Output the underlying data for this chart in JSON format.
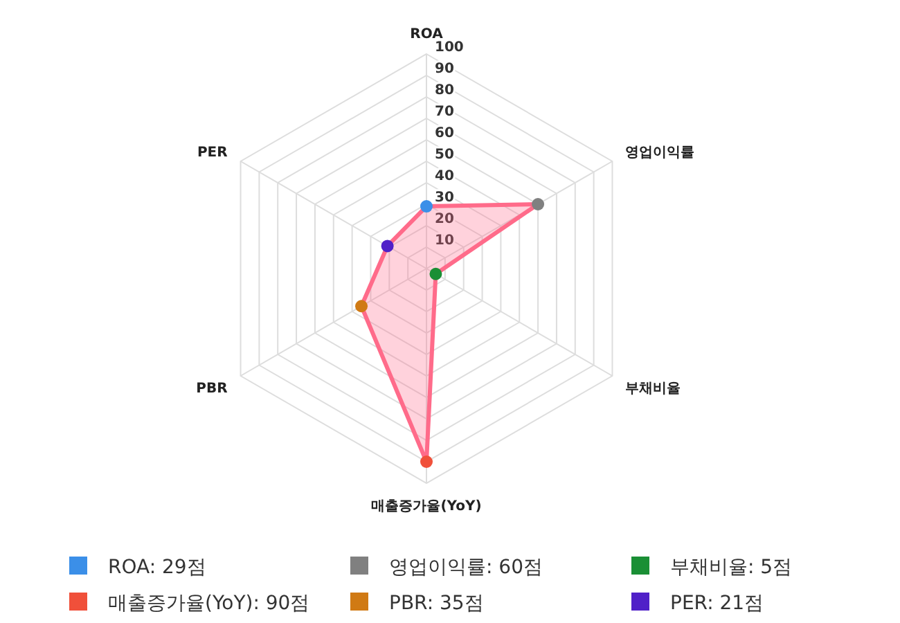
{
  "chart_data": {
    "type": "radar",
    "categories": [
      "ROA",
      "영업이익률",
      "부채비율",
      "매출증가율(YoY)",
      "PBR",
      "PER"
    ],
    "series": [
      {
        "color": "#ff6b8a",
        "values": [
          29,
          60,
          5,
          90,
          35,
          21
        ],
        "colors": [
          "#3b8fe8",
          "#808080",
          "#1a8f35",
          "#f0503a",
          "#d07a14",
          "#5020c8"
        ]
      }
    ],
    "annotations": [
      "ROA: 29점",
      "영업이익률: 60점",
      "부채비율: 5점",
      "매출증가율(YoY): 90점",
      "PBR: 35점",
      "PER: 21점"
    ],
    "ylim": [
      0,
      100
    ],
    "yticks": [
      10,
      20,
      30,
      40,
      50,
      60,
      70,
      80,
      90,
      100
    ],
    "grid": true,
    "marker": "circle"
  }
}
